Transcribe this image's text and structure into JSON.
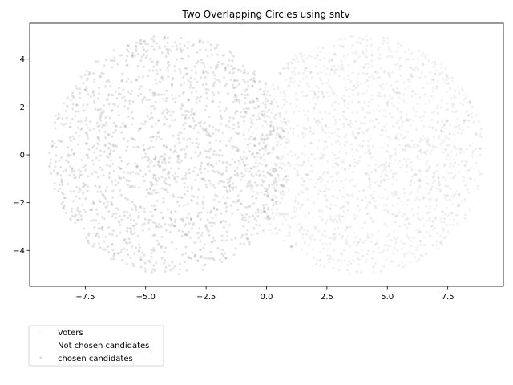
{
  "chart_data": {
    "type": "scatter",
    "title": "Two Overlapping Circles using sntv",
    "xlabel": "",
    "ylabel": "",
    "xlim": [
      -9.8,
      9.8
    ],
    "ylim": [
      -5.5,
      5.5
    ],
    "x_ticks": [
      -7.5,
      -5.0,
      -2.5,
      0.0,
      2.5,
      5.0,
      7.5
    ],
    "x_tick_labels": [
      "−7.5",
      "−5.0",
      "−2.5",
      "0.0",
      "2.5",
      "5.0",
      "7.5"
    ],
    "y_ticks": [
      -4,
      -2,
      0,
      2,
      4
    ],
    "y_tick_labels": [
      "−4",
      "−2",
      "0",
      "2",
      "4"
    ],
    "grid": false,
    "legend": {
      "placement": "below-left",
      "entries": [
        "Voters",
        "Not chosen candidates",
        "chosen candidates"
      ]
    },
    "series": [
      {
        "name": "Voters",
        "shape": "two-overlapping-discs",
        "circles": [
          {
            "cx": -4.0,
            "cy": 0.0,
            "r": 5.0
          },
          {
            "cx": 4.0,
            "cy": 0.0,
            "r": 5.0
          }
        ],
        "color": "#808080"
      }
    ],
    "colors": {
      "voters": "#808080",
      "not_chosen": "#ffffff",
      "chosen": "#d9d9d9"
    }
  }
}
